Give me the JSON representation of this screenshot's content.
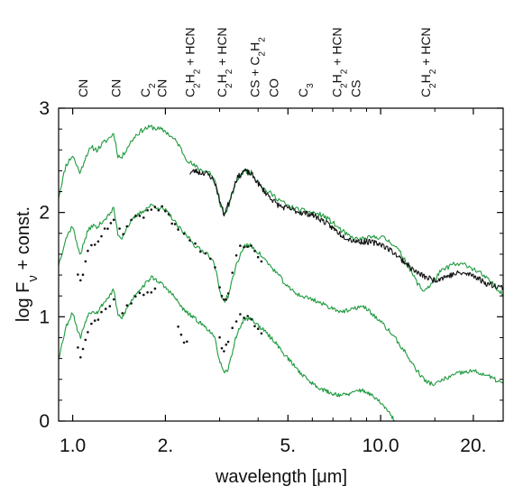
{
  "chart_data": {
    "type": "line",
    "xlabel": "wavelength [μm]",
    "ylabel": "log Fν + const.",
    "xscale": "log",
    "xlim": [
      0.9,
      25
    ],
    "ylim": [
      0,
      3
    ],
    "x_ticks": [
      {
        "value": 1.0,
        "label": "1.0"
      },
      {
        "value": 2.0,
        "label": "2."
      },
      {
        "value": 5.0,
        "label": "5."
      },
      {
        "value": 10.0,
        "label": "10.0"
      },
      {
        "value": 20.0,
        "label": "20."
      }
    ],
    "y_ticks": [
      {
        "value": 0,
        "label": "0"
      },
      {
        "value": 1,
        "label": "1"
      },
      {
        "value": 2,
        "label": "2"
      },
      {
        "value": 3,
        "label": "3"
      }
    ],
    "molecule_labels": [
      {
        "x": 1.08,
        "parts": [
          [
            "CN",
            "n"
          ]
        ]
      },
      {
        "x": 1.38,
        "parts": [
          [
            "CN",
            "n"
          ]
        ]
      },
      {
        "x": 1.72,
        "parts": [
          [
            "C",
            "n"
          ],
          [
            "2",
            "sub"
          ]
        ]
      },
      {
        "x": 1.95,
        "parts": [
          [
            "CN",
            "n"
          ]
        ]
      },
      {
        "x": 2.4,
        "parts": [
          [
            "C",
            "n"
          ],
          [
            "2",
            "sub"
          ],
          [
            "H",
            "n"
          ],
          [
            "2",
            "sub"
          ],
          [
            " + HCN",
            "n"
          ]
        ]
      },
      {
        "x": 3.05,
        "parts": [
          [
            "C",
            "n"
          ],
          [
            "2",
            "sub"
          ],
          [
            "H",
            "n"
          ],
          [
            "2",
            "sub"
          ],
          [
            " + HCN",
            "n"
          ]
        ]
      },
      {
        "x": 3.9,
        "parts": [
          [
            "CS + C",
            "n"
          ],
          [
            "2",
            "sub"
          ],
          [
            "H",
            "n"
          ],
          [
            "2",
            "sub"
          ]
        ]
      },
      {
        "x": 4.5,
        "parts": [
          [
            "CO",
            "n"
          ]
        ]
      },
      {
        "x": 5.6,
        "parts": [
          [
            "C",
            "n"
          ],
          [
            "3",
            "sub"
          ]
        ]
      },
      {
        "x": 7.2,
        "parts": [
          [
            "C",
            "n"
          ],
          [
            "2",
            "sub"
          ],
          [
            "H",
            "n"
          ],
          [
            "2",
            "sub"
          ],
          [
            " + HCN",
            "n"
          ]
        ]
      },
      {
        "x": 8.3,
        "parts": [
          [
            "CS",
            "n"
          ]
        ]
      },
      {
        "x": 14.0,
        "parts": [
          [
            "C",
            "n"
          ],
          [
            "2",
            "sub"
          ],
          [
            "H",
            "n"
          ],
          [
            "2",
            "sub"
          ],
          [
            " + HCN",
            "n"
          ]
        ]
      }
    ],
    "series": [
      {
        "color": "#1f9a3e",
        "style": "line",
        "noise": 0.025,
        "seed": 11,
        "x": [
          0.9,
          0.95,
          1.0,
          1.03,
          1.06,
          1.09,
          1.12,
          1.16,
          1.2,
          1.25,
          1.3,
          1.36,
          1.4,
          1.44,
          1.5,
          1.6,
          1.7,
          1.8,
          1.9,
          2.0,
          2.1,
          2.2,
          2.3,
          2.4,
          2.5,
          2.6,
          2.7,
          2.8,
          2.9,
          3.0,
          3.1,
          3.2,
          3.4,
          3.6,
          3.8,
          4.0,
          4.2,
          4.4,
          4.6,
          4.8,
          5.0,
          5.5,
          6.0,
          6.5,
          7.0,
          7.5,
          8.0,
          8.5,
          9.0,
          10.0,
          11.0,
          12.0,
          13.0,
          13.7,
          14.5,
          15.5,
          17.0,
          19.0,
          21.0,
          23.0,
          25.0
        ],
        "y": [
          2.15,
          2.45,
          2.55,
          2.45,
          2.38,
          2.5,
          2.58,
          2.62,
          2.6,
          2.66,
          2.7,
          2.76,
          2.55,
          2.52,
          2.62,
          2.74,
          2.8,
          2.82,
          2.8,
          2.78,
          2.72,
          2.66,
          2.55,
          2.48,
          2.44,
          2.41,
          2.4,
          2.38,
          2.3,
          2.1,
          1.98,
          2.05,
          2.3,
          2.4,
          2.38,
          2.3,
          2.22,
          2.18,
          2.14,
          2.1,
          2.06,
          2.02,
          2.0,
          1.97,
          1.9,
          1.82,
          1.76,
          1.74,
          1.75,
          1.77,
          1.7,
          1.55,
          1.35,
          1.25,
          1.3,
          1.42,
          1.5,
          1.5,
          1.42,
          1.32,
          1.22
        ]
      },
      {
        "color": "#111111",
        "style": "line",
        "noise": 0.028,
        "seed": 23,
        "x": [
          2.4,
          2.5,
          2.6,
          2.7,
          2.8,
          2.9,
          3.0,
          3.1,
          3.2,
          3.4,
          3.6,
          3.8,
          4.0,
          4.2,
          4.4,
          4.6,
          4.8,
          5.0,
          5.5,
          6.0,
          6.5,
          7.0,
          7.5,
          8.0,
          8.5,
          9.0,
          10.0,
          11.0,
          12.0,
          13.0,
          14.0,
          15.0,
          16.0,
          18.0,
          20.0,
          22.0,
          25.0
        ],
        "y": [
          2.38,
          2.4,
          2.38,
          2.38,
          2.35,
          2.28,
          2.12,
          1.98,
          2.08,
          2.32,
          2.4,
          2.37,
          2.28,
          2.2,
          2.14,
          2.08,
          2.05,
          2.04,
          2.0,
          1.98,
          1.92,
          1.85,
          1.78,
          1.74,
          1.72,
          1.72,
          1.7,
          1.62,
          1.52,
          1.43,
          1.38,
          1.35,
          1.38,
          1.42,
          1.4,
          1.32,
          1.28
        ]
      },
      {
        "color": "#1f9a3e",
        "style": "line",
        "noise": 0.022,
        "seed": 37,
        "x": [
          0.9,
          0.95,
          1.0,
          1.03,
          1.06,
          1.09,
          1.12,
          1.16,
          1.2,
          1.25,
          1.3,
          1.36,
          1.4,
          1.44,
          1.5,
          1.6,
          1.7,
          1.8,
          1.9,
          2.0,
          2.1,
          2.2,
          2.3,
          2.4,
          2.5,
          2.6,
          2.7,
          2.8,
          2.9,
          3.0,
          3.1,
          3.2,
          3.4,
          3.6,
          3.8,
          4.0,
          4.2,
          4.4,
          4.6,
          4.8,
          5.0,
          5.5,
          6.0,
          6.5,
          7.0,
          7.5,
          8.0,
          8.5,
          9.0,
          10.0,
          11.0,
          12.0,
          13.0,
          14.0,
          15.0,
          16.0,
          18.0,
          20.0,
          22.0,
          25.0
        ],
        "y": [
          1.5,
          1.75,
          1.88,
          1.7,
          1.6,
          1.72,
          1.82,
          1.88,
          1.85,
          1.92,
          1.96,
          2.04,
          1.8,
          1.75,
          1.86,
          1.96,
          2.02,
          2.07,
          2.05,
          2.02,
          1.95,
          1.86,
          1.8,
          1.75,
          1.68,
          1.64,
          1.62,
          1.58,
          1.48,
          1.25,
          1.15,
          1.2,
          1.5,
          1.68,
          1.68,
          1.62,
          1.55,
          1.48,
          1.42,
          1.35,
          1.28,
          1.2,
          1.17,
          1.12,
          1.08,
          1.05,
          1.06,
          1.1,
          1.08,
          0.95,
          0.82,
          0.66,
          0.5,
          0.38,
          0.35,
          0.4,
          0.46,
          0.48,
          0.44,
          0.36
        ]
      },
      {
        "color": "#111111",
        "style": "points",
        "noise": 0.03,
        "seed": 41,
        "x": [
          1.04,
          1.06,
          1.08,
          1.1,
          1.12,
          1.15,
          1.18,
          1.21,
          1.24,
          1.27,
          1.3,
          1.33,
          1.36,
          1.42,
          1.46,
          1.5,
          1.55,
          1.6,
          1.65,
          1.7,
          1.75,
          1.8,
          1.85,
          1.9,
          1.95,
          2.0,
          2.05,
          2.1,
          2.15,
          2.2,
          2.3,
          2.4,
          2.5,
          2.6,
          2.7,
          2.8,
          2.9,
          3.0,
          3.05,
          3.1,
          3.15,
          3.2,
          3.3,
          3.4,
          3.5,
          3.6,
          3.7,
          3.8,
          3.9,
          4.0,
          4.1
        ],
        "y": [
          1.42,
          1.32,
          1.38,
          1.55,
          1.62,
          1.7,
          1.72,
          1.74,
          1.78,
          1.82,
          1.85,
          1.88,
          1.92,
          1.82,
          1.8,
          1.86,
          1.9,
          1.94,
          1.96,
          1.98,
          2.0,
          2.02,
          2.03,
          2.04,
          2.04,
          2.02,
          1.98,
          1.92,
          1.88,
          1.84,
          1.8,
          1.74,
          1.68,
          1.64,
          1.62,
          1.56,
          1.46,
          1.26,
          1.18,
          1.16,
          1.18,
          1.22,
          1.42,
          1.58,
          1.66,
          1.69,
          1.68,
          1.66,
          1.63,
          1.6,
          1.56
        ]
      },
      {
        "color": "#1f9a3e",
        "style": "line",
        "noise": 0.02,
        "seed": 53,
        "x": [
          0.9,
          0.95,
          1.0,
          1.03,
          1.06,
          1.09,
          1.12,
          1.16,
          1.2,
          1.25,
          1.3,
          1.36,
          1.4,
          1.44,
          1.5,
          1.6,
          1.7,
          1.8,
          1.9,
          2.0,
          2.1,
          2.2,
          2.3,
          2.4,
          2.5,
          2.6,
          2.7,
          2.8,
          2.9,
          3.0,
          3.1,
          3.2,
          3.4,
          3.6,
          3.8,
          4.0,
          4.2,
          4.4,
          4.6,
          4.8,
          5.0,
          5.5,
          6.0,
          6.5,
          7.0,
          7.5,
          8.0,
          8.5,
          9.0,
          10.0,
          10.5,
          11.0,
          11.5
        ],
        "y": [
          0.6,
          0.9,
          1.05,
          0.9,
          0.8,
          0.92,
          1.02,
          1.06,
          1.04,
          1.12,
          1.18,
          1.26,
          1.02,
          0.98,
          1.08,
          1.22,
          1.3,
          1.38,
          1.34,
          1.28,
          1.22,
          1.14,
          1.06,
          1.02,
          0.98,
          0.94,
          0.9,
          0.86,
          0.78,
          0.58,
          0.45,
          0.5,
          0.82,
          0.98,
          0.98,
          0.92,
          0.86,
          0.8,
          0.74,
          0.66,
          0.6,
          0.46,
          0.36,
          0.3,
          0.26,
          0.25,
          0.26,
          0.3,
          0.28,
          0.18,
          0.1,
          0.02,
          -0.08
        ]
      },
      {
        "color": "#111111",
        "style": "points",
        "noise": 0.03,
        "seed": 67,
        "x": [
          1.04,
          1.06,
          1.08,
          1.1,
          1.12,
          1.15,
          1.18,
          1.21,
          1.24,
          1.28,
          1.32,
          1.36,
          1.45,
          1.5,
          1.55,
          1.6,
          1.65,
          1.7,
          1.75,
          1.8,
          1.85,
          2.2,
          2.25,
          2.3,
          2.35,
          3.0,
          3.05,
          3.1,
          3.15,
          3.2,
          3.3,
          3.4,
          3.5,
          3.6,
          3.7,
          3.8,
          3.9,
          4.0,
          4.1
        ],
        "y": [
          0.72,
          0.62,
          0.68,
          0.8,
          0.88,
          0.92,
          0.98,
          1.0,
          1.04,
          1.08,
          1.12,
          1.16,
          1.06,
          1.1,
          1.14,
          1.18,
          1.2,
          1.22,
          1.24,
          1.26,
          1.25,
          0.92,
          0.84,
          0.78,
          0.74,
          0.78,
          0.72,
          0.7,
          0.72,
          0.76,
          0.88,
          0.96,
          1.0,
          1.02,
          1.0,
          0.98,
          0.94,
          0.9,
          0.86
        ]
      }
    ]
  }
}
